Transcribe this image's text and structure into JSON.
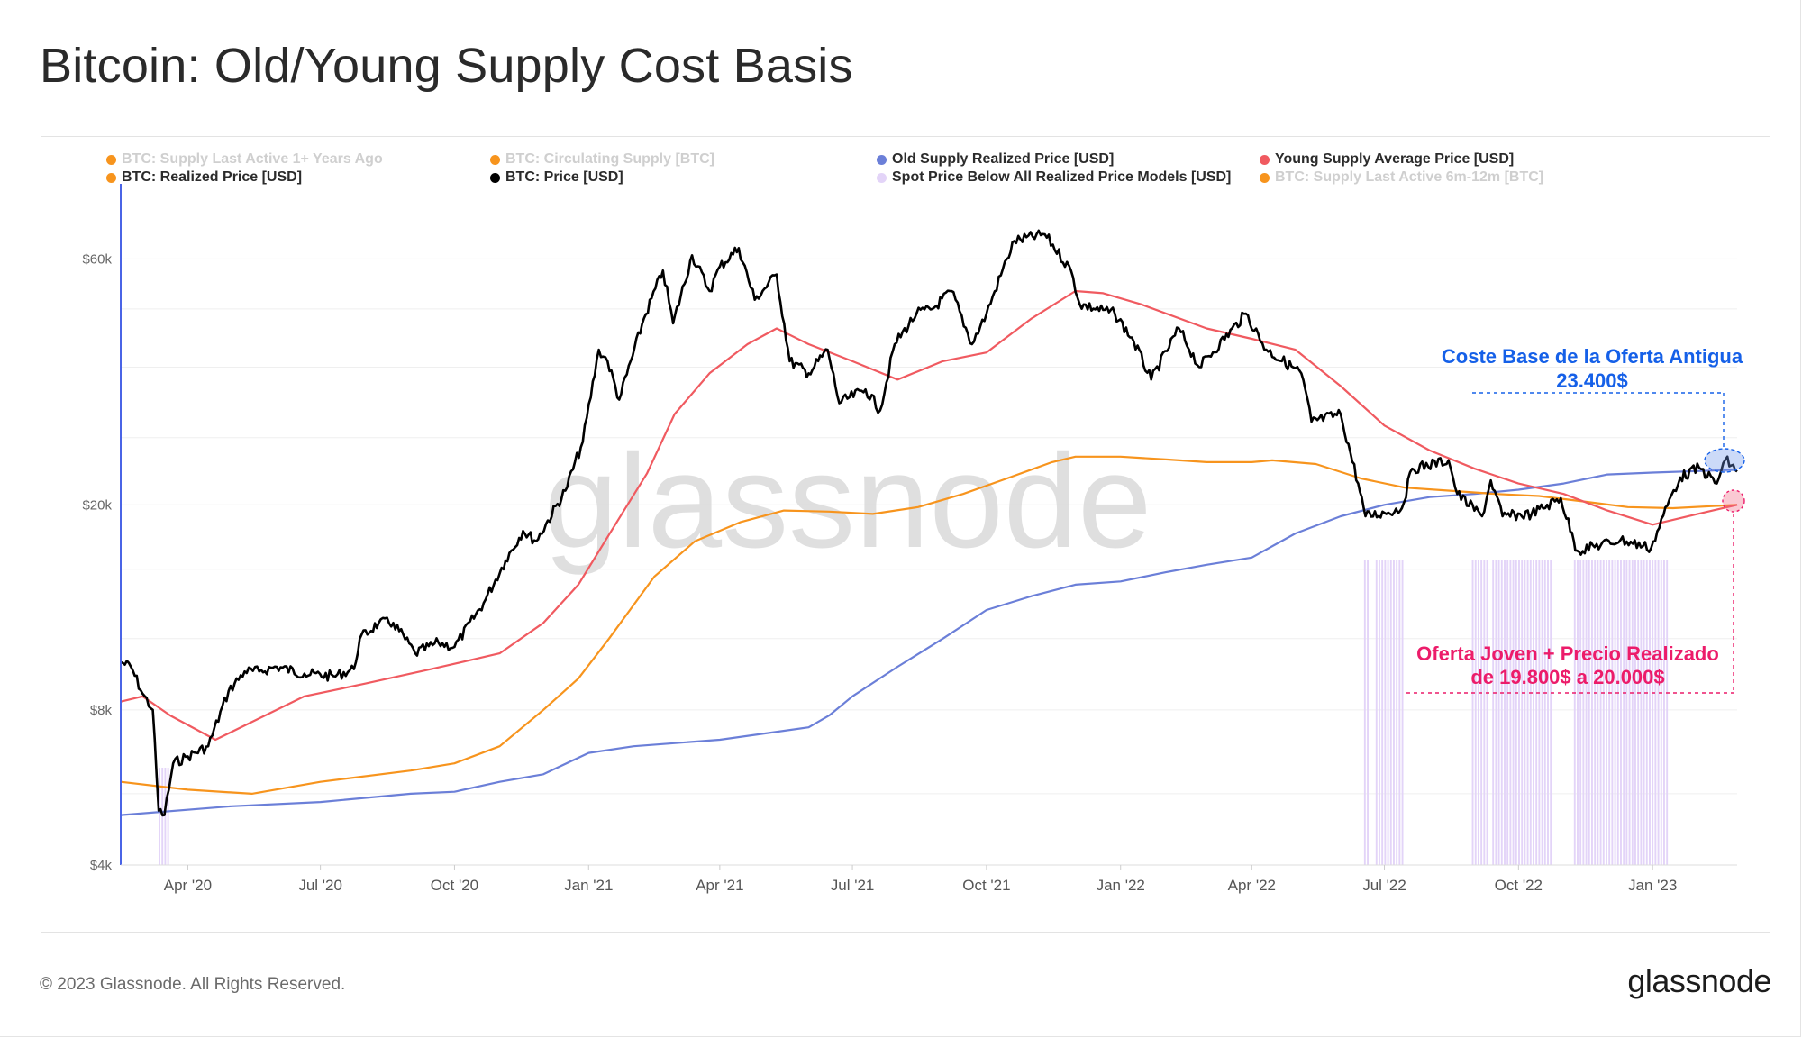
{
  "header": {
    "title": "Bitcoin: Old/Young Supply Cost Basis"
  },
  "footer": {
    "copyright": "© 2023 Glassnode. All Rights Reserved.",
    "logo_text": "glassnode"
  },
  "watermark": "glassnode",
  "colors": {
    "old_supply": "#6b7fd8",
    "young_supply": "#f05a60",
    "realized": "#f7941d",
    "price": "#000000",
    "spot_below": "#e3d4f8",
    "annotation_blue": "#1560e8",
    "annotation_pink": "#ec1c6a"
  },
  "annotations": {
    "old_cost_basis": {
      "line1": "Coste Base de la Oferta Antigua",
      "line2": "23.400$"
    },
    "young_realized": {
      "line1": "Oferta Joven + Precio Realizado",
      "line2": "de 19.800$ a 20.000$"
    }
  },
  "chart_data": {
    "type": "line",
    "title": "Bitcoin: Old/Young Supply Cost Basis",
    "y_scale": "log",
    "ylim": [
      4000,
      75000
    ],
    "y_ticks": [
      {
        "value": 4000,
        "label": "$4k"
      },
      {
        "value": 8000,
        "label": "$8k"
      },
      {
        "value": 20000,
        "label": "$20k"
      },
      {
        "value": 60000,
        "label": "$60k"
      }
    ],
    "x_range": [
      "2020-02-15",
      "2023-02-28"
    ],
    "x_ticks": [
      {
        "date": "2020-04-01",
        "label": "Apr '20"
      },
      {
        "date": "2020-07-01",
        "label": "Jul '20"
      },
      {
        "date": "2020-10-01",
        "label": "Oct '20"
      },
      {
        "date": "2021-01-01",
        "label": "Jan '21"
      },
      {
        "date": "2021-04-01",
        "label": "Apr '21"
      },
      {
        "date": "2021-07-01",
        "label": "Jul '21"
      },
      {
        "date": "2021-10-01",
        "label": "Oct '21"
      },
      {
        "date": "2022-01-01",
        "label": "Jan '22"
      },
      {
        "date": "2022-04-01",
        "label": "Apr '22"
      },
      {
        "date": "2022-07-01",
        "label": "Jul '22"
      },
      {
        "date": "2022-10-01",
        "label": "Oct '22"
      },
      {
        "date": "2023-01-01",
        "label": "Jan '23"
      }
    ],
    "grid": true,
    "legend": [
      {
        "name": "BTC: Supply Last Active 1+ Years Ago",
        "color": "#f7941d",
        "active": false
      },
      {
        "name": "BTC: Circulating Supply [BTC]",
        "color": "#f7941d",
        "active": false
      },
      {
        "name": "Old Supply Realized Price [USD]",
        "color": "#6b7fd8",
        "active": true
      },
      {
        "name": "Young Supply Average Price [USD]",
        "color": "#f05a60",
        "active": true
      },
      {
        "name": "BTC: Realized Price [USD]",
        "color": "#f7941d",
        "active": true
      },
      {
        "name": "BTC: Price [USD]",
        "color": "#000000",
        "active": true
      },
      {
        "name": "Spot Price Below All Realized Price Models [USD]",
        "color": "#e3d4f8",
        "active": true
      },
      {
        "name": "BTC: Supply Last Active 6m-12m [BTC]",
        "color": "#f7941d",
        "active": false
      }
    ],
    "series": [
      {
        "name": "BTC: Price [USD]",
        "color": "#000000",
        "points": [
          [
            "2020-02-15",
            9900
          ],
          [
            "2020-02-22",
            9700
          ],
          [
            "2020-03-01",
            8600
          ],
          [
            "2020-03-08",
            8000
          ],
          [
            "2020-03-12",
            5100
          ],
          [
            "2020-03-16",
            5000
          ],
          [
            "2020-03-22",
            6300
          ],
          [
            "2020-04-01",
            6500
          ],
          [
            "2020-04-15",
            6800
          ],
          [
            "2020-04-29",
            8700
          ],
          [
            "2020-05-10",
            9500
          ],
          [
            "2020-05-20",
            9500
          ],
          [
            "2020-06-01",
            9700
          ],
          [
            "2020-06-20",
            9400
          ],
          [
            "2020-07-10",
            9300
          ],
          [
            "2020-07-24",
            9600
          ],
          [
            "2020-07-28",
            11000
          ],
          [
            "2020-08-10",
            11800
          ],
          [
            "2020-08-20",
            11800
          ],
          [
            "2020-09-04",
            10300
          ],
          [
            "2020-09-20",
            10800
          ],
          [
            "2020-10-01",
            10600
          ],
          [
            "2020-10-21",
            12900
          ],
          [
            "2020-11-05",
            15600
          ],
          [
            "2020-11-17",
            17800
          ],
          [
            "2020-11-26",
            17000
          ],
          [
            "2020-12-16",
            21300
          ],
          [
            "2020-12-28",
            26500
          ],
          [
            "2021-01-08",
            40000
          ],
          [
            "2021-01-14",
            38000
          ],
          [
            "2021-01-22",
            32000
          ],
          [
            "2021-02-08",
            46000
          ],
          [
            "2021-02-21",
            57000
          ],
          [
            "2021-02-28",
            45000
          ],
          [
            "2021-03-13",
            61000
          ],
          [
            "2021-03-25",
            52000
          ],
          [
            "2021-04-01",
            58000
          ],
          [
            "2021-04-14",
            63000
          ],
          [
            "2021-04-25",
            50000
          ],
          [
            "2021-05-10",
            56000
          ],
          [
            "2021-05-19",
            38000
          ],
          [
            "2021-06-01",
            36000
          ],
          [
            "2021-06-14",
            40000
          ],
          [
            "2021-06-22",
            31500
          ],
          [
            "2021-07-10",
            33500
          ],
          [
            "2021-07-20",
            30500
          ],
          [
            "2021-07-30",
            41000
          ],
          [
            "2021-08-14",
            47000
          ],
          [
            "2021-08-25",
            48000
          ],
          [
            "2021-09-07",
            52000
          ],
          [
            "2021-09-21",
            41000
          ],
          [
            "2021-10-01",
            47000
          ],
          [
            "2021-10-15",
            60000
          ],
          [
            "2021-10-20",
            65000
          ],
          [
            "2021-11-10",
            67000
          ],
          [
            "2021-11-28",
            57000
          ],
          [
            "2021-12-04",
            49000
          ],
          [
            "2021-12-28",
            47000
          ],
          [
            "2022-01-10",
            41500
          ],
          [
            "2022-01-22",
            35000
          ],
          [
            "2022-02-10",
            44000
          ],
          [
            "2022-02-24",
            37000
          ],
          [
            "2022-03-28",
            47000
          ],
          [
            "2022-04-11",
            40000
          ],
          [
            "2022-05-05",
            36000
          ],
          [
            "2022-05-12",
            29000
          ],
          [
            "2022-06-01",
            30000
          ],
          [
            "2022-06-13",
            22000
          ],
          [
            "2022-06-18",
            19000
          ],
          [
            "2022-07-01",
            19300
          ],
          [
            "2022-07-13",
            19700
          ],
          [
            "2022-07-20",
            23500
          ],
          [
            "2022-08-14",
            24400
          ],
          [
            "2022-08-20",
            21000
          ],
          [
            "2022-09-06",
            19000
          ],
          [
            "2022-09-12",
            22300
          ],
          [
            "2022-09-20",
            19000
          ],
          [
            "2022-10-10",
            19200
          ],
          [
            "2022-10-30",
            20600
          ],
          [
            "2022-11-08",
            17000
          ],
          [
            "2022-11-10",
            16300
          ],
          [
            "2022-12-10",
            17100
          ],
          [
            "2022-12-31",
            16500
          ],
          [
            "2023-01-14",
            20900
          ],
          [
            "2023-01-20",
            22600
          ],
          [
            "2023-02-02",
            23600
          ],
          [
            "2023-02-14",
            22000
          ],
          [
            "2023-02-20",
            24500
          ],
          [
            "2023-02-28",
            23200
          ]
        ]
      },
      {
        "name": "Young Supply Average Price [USD]",
        "color": "#f05a60",
        "points": [
          [
            "2020-02-15",
            8300
          ],
          [
            "2020-03-01",
            8500
          ],
          [
            "2020-03-20",
            7800
          ],
          [
            "2020-04-20",
            7000
          ],
          [
            "2020-05-20",
            7700
          ],
          [
            "2020-06-20",
            8500
          ],
          [
            "2020-08-01",
            9000
          ],
          [
            "2020-09-15",
            9600
          ],
          [
            "2020-11-01",
            10300
          ],
          [
            "2020-12-01",
            11800
          ],
          [
            "2020-12-25",
            14000
          ],
          [
            "2021-01-15",
            17500
          ],
          [
            "2021-02-10",
            23000
          ],
          [
            "2021-03-01",
            30000
          ],
          [
            "2021-03-25",
            36000
          ],
          [
            "2021-04-20",
            41000
          ],
          [
            "2021-05-10",
            44000
          ],
          [
            "2021-06-01",
            41000
          ],
          [
            "2021-07-01",
            38000
          ],
          [
            "2021-08-01",
            35000
          ],
          [
            "2021-09-01",
            38000
          ],
          [
            "2021-10-01",
            39500
          ],
          [
            "2021-11-01",
            46000
          ],
          [
            "2021-12-01",
            52000
          ],
          [
            "2021-12-20",
            51500
          ],
          [
            "2022-01-15",
            49000
          ],
          [
            "2022-03-01",
            44000
          ],
          [
            "2022-04-01",
            42000
          ],
          [
            "2022-05-01",
            40000
          ],
          [
            "2022-06-01",
            34000
          ],
          [
            "2022-07-01",
            28500
          ],
          [
            "2022-08-01",
            25500
          ],
          [
            "2022-09-01",
            23500
          ],
          [
            "2022-10-01",
            22000
          ],
          [
            "2022-11-01",
            21000
          ],
          [
            "2022-12-01",
            19500
          ],
          [
            "2023-01-01",
            18300
          ],
          [
            "2023-02-01",
            19200
          ],
          [
            "2023-02-28",
            20000
          ]
        ]
      },
      {
        "name": "BTC: Realized Price [USD]",
        "color": "#f7941d",
        "points": [
          [
            "2020-02-15",
            5800
          ],
          [
            "2020-04-01",
            5600
          ],
          [
            "2020-05-15",
            5500
          ],
          [
            "2020-07-01",
            5800
          ],
          [
            "2020-09-01",
            6100
          ],
          [
            "2020-10-01",
            6300
          ],
          [
            "2020-11-01",
            6800
          ],
          [
            "2020-12-01",
            8000
          ],
          [
            "2020-12-25",
            9200
          ],
          [
            "2021-01-15",
            11000
          ],
          [
            "2021-02-15",
            14500
          ],
          [
            "2021-03-15",
            17000
          ],
          [
            "2021-04-15",
            18500
          ],
          [
            "2021-05-15",
            19500
          ],
          [
            "2021-06-15",
            19400
          ],
          [
            "2021-07-15",
            19200
          ],
          [
            "2021-08-15",
            19800
          ],
          [
            "2021-09-15",
            21000
          ],
          [
            "2021-10-15",
            22500
          ],
          [
            "2021-11-15",
            24200
          ],
          [
            "2021-12-01",
            24800
          ],
          [
            "2022-01-01",
            24800
          ],
          [
            "2022-02-01",
            24500
          ],
          [
            "2022-03-01",
            24200
          ],
          [
            "2022-04-01",
            24200
          ],
          [
            "2022-04-15",
            24400
          ],
          [
            "2022-05-15",
            24000
          ],
          [
            "2022-06-15",
            22500
          ],
          [
            "2022-07-15",
            21600
          ],
          [
            "2022-08-15",
            21300
          ],
          [
            "2022-09-15",
            21000
          ],
          [
            "2022-10-15",
            20800
          ],
          [
            "2022-11-15",
            20300
          ],
          [
            "2022-12-15",
            19800
          ],
          [
            "2023-01-15",
            19700
          ],
          [
            "2023-02-28",
            20000
          ]
        ]
      },
      {
        "name": "Old Supply Realized Price [USD]",
        "color": "#6b7fd8",
        "points": [
          [
            "2020-02-15",
            5000
          ],
          [
            "2020-05-01",
            5200
          ],
          [
            "2020-07-01",
            5300
          ],
          [
            "2020-09-01",
            5500
          ],
          [
            "2020-10-01",
            5550
          ],
          [
            "2020-11-01",
            5800
          ],
          [
            "2020-12-01",
            6000
          ],
          [
            "2021-01-01",
            6600
          ],
          [
            "2021-02-01",
            6800
          ],
          [
            "2021-04-01",
            7000
          ],
          [
            "2021-06-01",
            7400
          ],
          [
            "2021-06-15",
            7800
          ],
          [
            "2021-07-01",
            8500
          ],
          [
            "2021-08-01",
            9700
          ],
          [
            "2021-09-01",
            11000
          ],
          [
            "2021-10-01",
            12500
          ],
          [
            "2021-11-01",
            13300
          ],
          [
            "2021-12-01",
            14000
          ],
          [
            "2022-01-01",
            14200
          ],
          [
            "2022-02-01",
            14800
          ],
          [
            "2022-03-01",
            15300
          ],
          [
            "2022-04-01",
            15800
          ],
          [
            "2022-05-01",
            17600
          ],
          [
            "2022-06-01",
            19000
          ],
          [
            "2022-07-01",
            20000
          ],
          [
            "2022-08-01",
            20700
          ],
          [
            "2022-09-01",
            21000
          ],
          [
            "2022-10-01",
            21400
          ],
          [
            "2022-11-01",
            22000
          ],
          [
            "2022-12-01",
            22900
          ],
          [
            "2023-01-01",
            23100
          ],
          [
            "2023-02-28",
            23400
          ]
        ]
      }
    ],
    "spot_below_periods": [
      [
        "2020-03-12",
        "2020-03-18"
      ],
      [
        "2022-06-17",
        "2022-06-19"
      ],
      [
        "2022-06-25",
        "2022-07-13"
      ],
      [
        "2022-08-30",
        "2022-09-10"
      ],
      [
        "2022-09-13",
        "2022-10-24"
      ],
      [
        "2022-11-08",
        "2023-01-12"
      ]
    ]
  }
}
